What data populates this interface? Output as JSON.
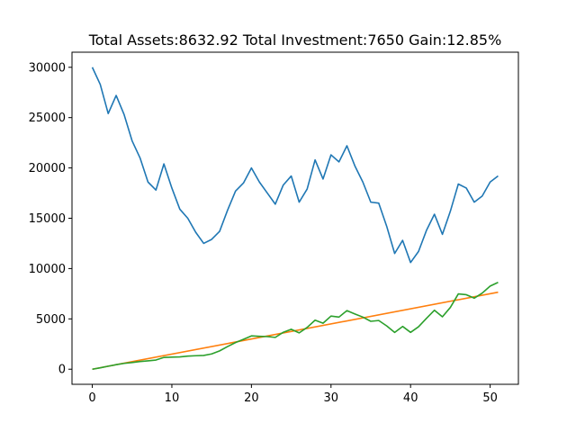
{
  "chart_data": {
    "type": "line",
    "title": "Total Assets:8632.92  Total Investment:7650  Gain:12.85%",
    "xlabel": "",
    "ylabel": "",
    "xlim": [
      -2.55,
      53.55
    ],
    "ylim": [
      -1500,
      31500
    ],
    "xticks": [
      0,
      10,
      20,
      30,
      40,
      50
    ],
    "yticks": [
      0,
      5000,
      10000,
      15000,
      20000,
      25000,
      30000
    ],
    "grid": false,
    "legend": "none",
    "series": [
      {
        "color": "#1f77b4",
        "x": [
          0,
          1,
          2,
          3,
          4,
          5,
          6,
          7,
          8,
          9,
          10,
          11,
          12,
          13,
          14,
          15,
          16,
          17,
          18,
          19,
          20,
          21,
          22,
          23,
          24,
          25,
          26,
          27,
          28,
          29,
          30,
          31,
          32,
          33,
          34,
          35,
          36,
          37,
          38,
          39,
          40,
          41,
          42,
          43,
          44,
          45,
          46,
          47,
          48,
          49,
          50,
          51
        ],
        "y": [
          30000,
          28300,
          25400,
          27200,
          25300,
          22700,
          21000,
          18600,
          17800,
          20400,
          18000,
          15900,
          15000,
          13600,
          12500,
          12900,
          13700,
          15800,
          17700,
          18500,
          20000,
          18600,
          17500,
          16400,
          18300,
          19200,
          16600,
          17900,
          20800,
          18900,
          21300,
          20600,
          22200,
          20200,
          18600,
          16600,
          16500,
          14200,
          11500,
          12800,
          10600,
          11700,
          13800,
          15400,
          13400,
          15700,
          18400,
          18000,
          16600,
          17200,
          18600,
          19200
        ]
      },
      {
        "color": "#ff7f0e",
        "x": [
          0,
          51
        ],
        "y": [
          0,
          7650
        ]
      },
      {
        "color": "#2ca02c",
        "x": [
          0,
          1,
          2,
          3,
          4,
          5,
          6,
          7,
          8,
          9,
          10,
          11,
          12,
          13,
          14,
          15,
          16,
          17,
          18,
          19,
          20,
          21,
          22,
          23,
          24,
          25,
          26,
          27,
          28,
          29,
          30,
          31,
          32,
          33,
          34,
          35,
          36,
          37,
          38,
          39,
          40,
          41,
          42,
          43,
          44,
          45,
          46,
          47,
          48,
          49,
          50,
          51
        ],
        "y": [
          0,
          140,
          300,
          450,
          580,
          660,
          760,
          830,
          910,
          1170,
          1200,
          1220,
          1300,
          1340,
          1370,
          1520,
          1820,
          2250,
          2650,
          2970,
          3310,
          3270,
          3240,
          3160,
          3670,
          3970,
          3610,
          4150,
          4870,
          4570,
          5280,
          5180,
          5820,
          5490,
          5180,
          4760,
          4840,
          4300,
          3650,
          4250,
          3660,
          4220,
          5060,
          5860,
          5210,
          6140,
          7480,
          7400,
          7060,
          7560,
          8260,
          8630
        ]
      }
    ]
  }
}
